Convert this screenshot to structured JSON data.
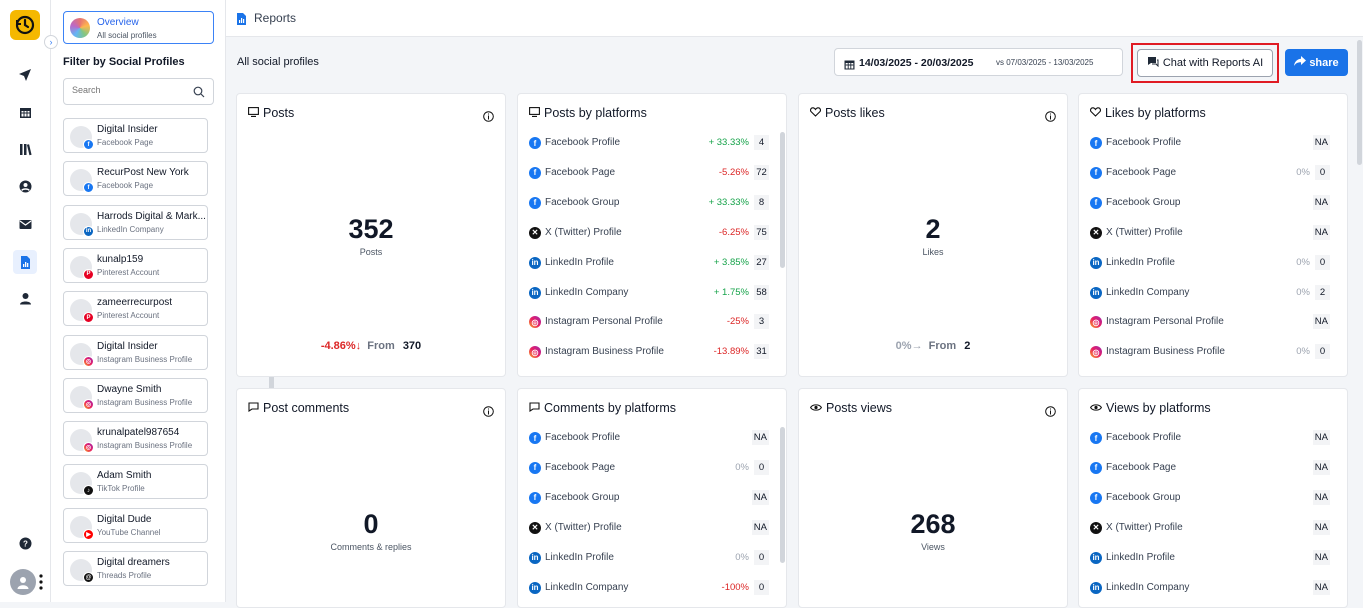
{
  "header": {
    "title": "Reports"
  },
  "sidebar": {
    "overview": {
      "title": "Overview",
      "subtitle": "All social profiles"
    },
    "filter_title": "Filter by Social Profiles",
    "search_placeholder": "Search",
    "profiles": [
      {
        "name": "Digital Insider",
        "type": "Facebook Page",
        "platform": "facebook"
      },
      {
        "name": "RecurPost New York",
        "type": "Facebook Page",
        "platform": "facebook"
      },
      {
        "name": "Harrods Digital & Mark...",
        "type": "LinkedIn Company",
        "platform": "linkedin"
      },
      {
        "name": "kunalp159",
        "type": "Pinterest Account",
        "platform": "pinterest"
      },
      {
        "name": "zameerrecurpost",
        "type": "Pinterest Account",
        "platform": "pinterest"
      },
      {
        "name": "Digital Insider",
        "type": "Instagram Business Profile",
        "platform": "instagram"
      },
      {
        "name": "Dwayne Smith",
        "type": "Instagram Business Profile",
        "platform": "instagram"
      },
      {
        "name": "krunalpatel987654",
        "type": "Instagram Business Profile",
        "platform": "instagram"
      },
      {
        "name": "Adam Smith",
        "type": "TikTok Profile",
        "platform": "tiktok"
      },
      {
        "name": "Digital Dude",
        "type": "YouTube Channel",
        "platform": "youtube"
      },
      {
        "name": "Digital dreamers",
        "type": "Threads Profile",
        "platform": "threads"
      }
    ]
  },
  "toolbar": {
    "section_label": "All social profiles",
    "date_range": "14/03/2025 - 20/03/2025",
    "compare_range": "vs 07/03/2025 - 13/03/2025",
    "chat_label": "Chat with Reports AI",
    "share_label": "share"
  },
  "cards": {
    "posts": {
      "title": "Posts",
      "value": "352",
      "sublabel": "Posts",
      "change": "-4.86%↓",
      "from_label": "From",
      "from_value": "370"
    },
    "likes": {
      "title": "Posts likes",
      "value": "2",
      "sublabel": "Likes",
      "change": "0%→",
      "from_label": "From",
      "from_value": "2"
    },
    "comments": {
      "title": "Post comments",
      "value": "0",
      "sublabel": "Comments & replies"
    },
    "views": {
      "title": "Posts views",
      "value": "268",
      "sublabel": "Views"
    },
    "posts_by_platforms": {
      "title": "Posts by platforms",
      "rows": [
        {
          "name": "Facebook Profile",
          "platform": "facebook",
          "change": "+ 33.33%",
          "dir": "up",
          "value": "4"
        },
        {
          "name": "Facebook Page",
          "platform": "facebook",
          "change": "-5.26%",
          "dir": "dn",
          "value": "72"
        },
        {
          "name": "Facebook Group",
          "platform": "facebook",
          "change": "+ 33.33%",
          "dir": "up",
          "value": "8"
        },
        {
          "name": "X (Twitter) Profile",
          "platform": "x",
          "change": "-6.25%",
          "dir": "dn",
          "value": "75"
        },
        {
          "name": "LinkedIn Profile",
          "platform": "linkedin",
          "change": "+ 3.85%",
          "dir": "up",
          "value": "27"
        },
        {
          "name": "LinkedIn Company",
          "platform": "linkedin",
          "change": "+ 1.75%",
          "dir": "up",
          "value": "58"
        },
        {
          "name": "Instagram Personal Profile",
          "platform": "instagram",
          "change": "-25%",
          "dir": "dn",
          "value": "3"
        },
        {
          "name": "Instagram Business Profile",
          "platform": "instagram",
          "change": "-13.89%",
          "dir": "dn",
          "value": "31"
        }
      ]
    },
    "likes_by_platforms": {
      "title": "Likes by platforms",
      "rows": [
        {
          "name": "Facebook Profile",
          "platform": "facebook",
          "change": "",
          "dir": "nu",
          "value": "NA"
        },
        {
          "name": "Facebook Page",
          "platform": "facebook",
          "change": "0%",
          "dir": "nu",
          "value": "0"
        },
        {
          "name": "Facebook Group",
          "platform": "facebook",
          "change": "",
          "dir": "nu",
          "value": "NA"
        },
        {
          "name": "X (Twitter) Profile",
          "platform": "x",
          "change": "",
          "dir": "nu",
          "value": "NA"
        },
        {
          "name": "LinkedIn Profile",
          "platform": "linkedin",
          "change": "0%",
          "dir": "nu",
          "value": "0"
        },
        {
          "name": "LinkedIn Company",
          "platform": "linkedin",
          "change": "0%",
          "dir": "nu",
          "value": "2"
        },
        {
          "name": "Instagram Personal Profile",
          "platform": "instagram",
          "change": "",
          "dir": "nu",
          "value": "NA"
        },
        {
          "name": "Instagram Business Profile",
          "platform": "instagram",
          "change": "0%",
          "dir": "nu",
          "value": "0"
        }
      ]
    },
    "comments_by_platforms": {
      "title": "Comments by platforms",
      "rows": [
        {
          "name": "Facebook Profile",
          "platform": "facebook",
          "change": "",
          "dir": "nu",
          "value": "NA"
        },
        {
          "name": "Facebook Page",
          "platform": "facebook",
          "change": "0%",
          "dir": "nu",
          "value": "0"
        },
        {
          "name": "Facebook Group",
          "platform": "facebook",
          "change": "",
          "dir": "nu",
          "value": "NA"
        },
        {
          "name": "X (Twitter) Profile",
          "platform": "x",
          "change": "",
          "dir": "nu",
          "value": "NA"
        },
        {
          "name": "LinkedIn Profile",
          "platform": "linkedin",
          "change": "0%",
          "dir": "nu",
          "value": "0"
        },
        {
          "name": "LinkedIn Company",
          "platform": "linkedin",
          "change": "-100%",
          "dir": "dn",
          "value": "0"
        }
      ]
    },
    "views_by_platforms": {
      "title": "Views by platforms",
      "rows": [
        {
          "name": "Facebook Profile",
          "platform": "facebook",
          "change": "",
          "dir": "nu",
          "value": "NA"
        },
        {
          "name": "Facebook Page",
          "platform": "facebook",
          "change": "",
          "dir": "nu",
          "value": "NA"
        },
        {
          "name": "Facebook Group",
          "platform": "facebook",
          "change": "",
          "dir": "nu",
          "value": "NA"
        },
        {
          "name": "X (Twitter) Profile",
          "platform": "x",
          "change": "",
          "dir": "nu",
          "value": "NA"
        },
        {
          "name": "LinkedIn Profile",
          "platform": "linkedin",
          "change": "",
          "dir": "nu",
          "value": "NA"
        },
        {
          "name": "LinkedIn Company",
          "platform": "linkedin",
          "change": "",
          "dir": "nu",
          "value": "NA"
        }
      ]
    }
  },
  "colors": {
    "accent": "#1a73e8",
    "brand": "#f5b800",
    "highlight": "#e01b24",
    "up": "#16a34a",
    "down": "#dc2626"
  }
}
